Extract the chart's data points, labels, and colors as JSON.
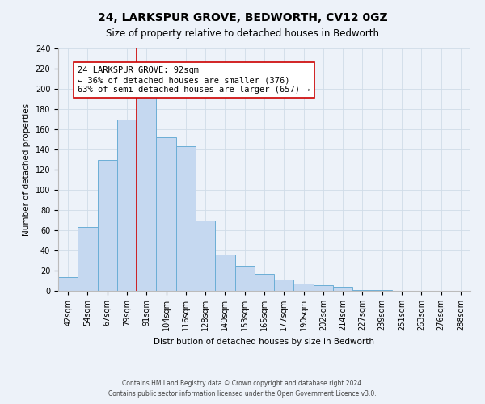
{
  "title": "24, LARKSPUR GROVE, BEDWORTH, CV12 0GZ",
  "subtitle": "Size of property relative to detached houses in Bedworth",
  "xlabel": "Distribution of detached houses by size in Bedworth",
  "ylabel": "Number of detached properties",
  "bar_labels": [
    "42sqm",
    "54sqm",
    "67sqm",
    "79sqm",
    "91sqm",
    "104sqm",
    "116sqm",
    "128sqm",
    "140sqm",
    "153sqm",
    "165sqm",
    "177sqm",
    "190sqm",
    "202sqm",
    "214sqm",
    "227sqm",
    "239sqm",
    "251sqm",
    "263sqm",
    "276sqm",
    "288sqm"
  ],
  "bar_values": [
    14,
    63,
    130,
    170,
    199,
    152,
    143,
    70,
    36,
    25,
    17,
    11,
    7,
    6,
    4,
    1,
    1,
    0,
    0,
    0,
    0
  ],
  "bar_color": "#c5d8f0",
  "bar_edge_color": "#6baed6",
  "vline_x_index": 4,
  "vline_color": "#cc0000",
  "annotation_line1": "24 LARKSPUR GROVE: 92sqm",
  "annotation_line2": "← 36% of detached houses are smaller (376)",
  "annotation_line3": "63% of semi-detached houses are larger (657) →",
  "annotation_box_color": "#ffffff",
  "annotation_box_edge": "#cc0000",
  "ylim": [
    0,
    240
  ],
  "yticks": [
    0,
    20,
    40,
    60,
    80,
    100,
    120,
    140,
    160,
    180,
    200,
    220,
    240
  ],
  "footer_line1": "Contains HM Land Registry data © Crown copyright and database right 2024.",
  "footer_line2": "Contains public sector information licensed under the Open Government Licence v3.0.",
  "grid_color": "#d0dce8",
  "bg_color": "#edf2f9",
  "title_fontsize": 10,
  "subtitle_fontsize": 8.5,
  "axis_label_fontsize": 7.5,
  "tick_fontsize": 7,
  "annotation_fontsize": 7.5,
  "footer_fontsize": 5.5
}
